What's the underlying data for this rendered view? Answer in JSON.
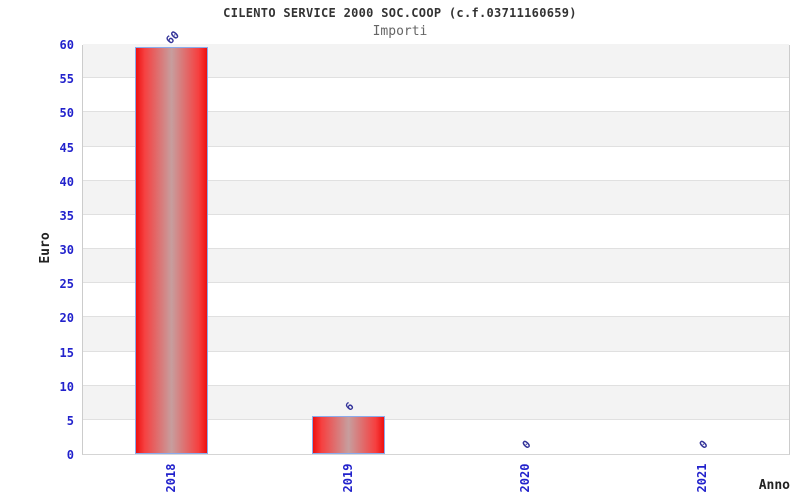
{
  "chart_data": {
    "type": "bar",
    "title": "CILENTO SERVICE 2000 SOC.COOP (c.f.03711160659)",
    "subtitle": "Importi",
    "xlabel": "Anno",
    "ylabel": "Euro",
    "categories": [
      "2018",
      "2019",
      "2020",
      "2021"
    ],
    "values": [
      59.6,
      5.6,
      0,
      0
    ],
    "value_labels": [
      "60",
      "6",
      "0",
      "0"
    ],
    "ylim": [
      0,
      60
    ],
    "ytick_step": 5,
    "grid": true,
    "legend": false,
    "plot_bands_alternating": true
  },
  "colors": {
    "tick_label": "#2222cc",
    "value_label": "#333399",
    "title_text": "#333333",
    "subtitle_text": "#666666",
    "axis_label_text": "#222222",
    "plot_border": "#cccccc",
    "gridline": "#e0e0e0",
    "band_gray": "#f3f3f3",
    "bar_red": "#ee1010",
    "bar_center": "#c79e9e",
    "bar_border": "#8aabec",
    "background": "#ffffff"
  }
}
